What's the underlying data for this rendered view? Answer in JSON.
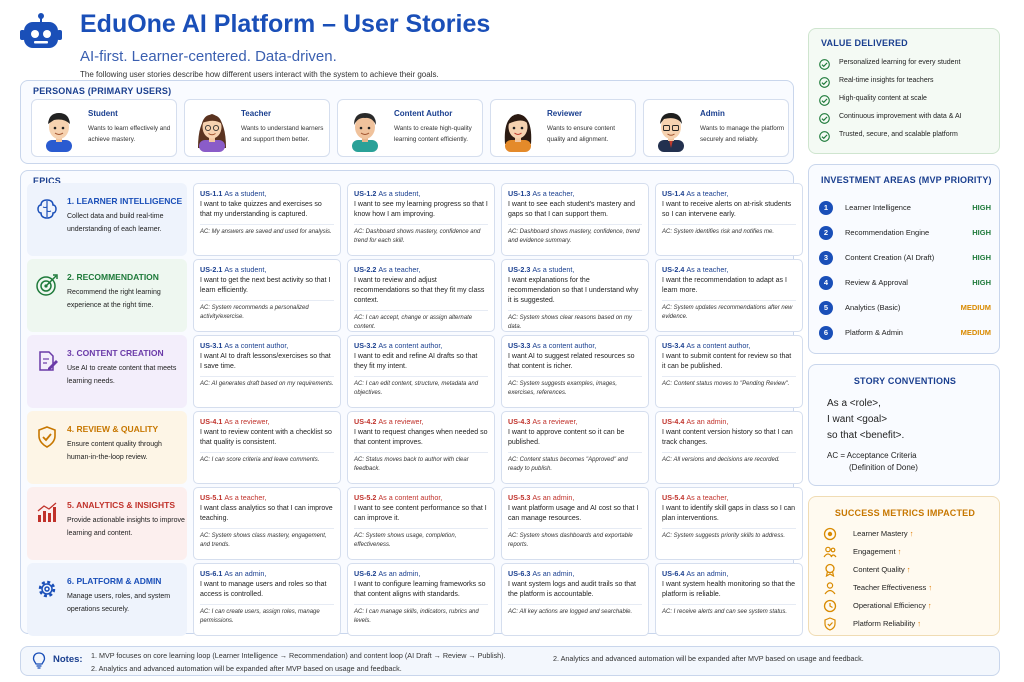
{
  "header": {
    "title": "EduOne AI Platform – User Stories",
    "subtitle": "AI-first. Learner-centered. Data-driven.",
    "intro": "The following user stories describe how different users interact with the system to achieve their goals."
  },
  "personas": {
    "title": "PERSONAS (PRIMARY USERS)",
    "items": [
      {
        "name": "Student",
        "desc": "Wants to learn effectively and achieve mastery.",
        "icon": "student-avatar-icon"
      },
      {
        "name": "Teacher",
        "desc": "Wants to understand learners and support them better.",
        "icon": "teacher-avatar-icon"
      },
      {
        "name": "Content Author",
        "desc": "Wants to create high-quality learning content efficiently.",
        "icon": "author-avatar-icon"
      },
      {
        "name": "Reviewer",
        "desc": "Wants to ensure content quality and alignment.",
        "icon": "reviewer-avatar-icon"
      },
      {
        "name": "Admin",
        "desc": "Wants to manage the platform securely and reliably.",
        "icon": "admin-avatar-icon"
      }
    ]
  },
  "epics": {
    "title": "EPICS",
    "rows": [
      {
        "title": "1. LEARNER INTELLIGENCE",
        "desc": "Collect data and build real-time understanding of each learner.",
        "color": "#1a4fb8",
        "bg": "#eef3fc",
        "icon": "brain-icon",
        "stories": [
          {
            "id": "US-1.1",
            "role": "As a student,",
            "want": "I want to take quizzes and exercises so that my understanding is captured.",
            "ac": "AC: My answers are saved and used for analysis."
          },
          {
            "id": "US-1.2",
            "role": "As a student,",
            "want": "I want to see my learning progress so that I know how I am improving.",
            "ac": "AC: Dashboard shows mastery, confidence and trend for each skill."
          },
          {
            "id": "US-1.3",
            "role": "As a teacher,",
            "want": "I want to see each student's mastery and gaps so that I can support them.",
            "ac": "AC: Dashboard shows mastery, confidence, trend and evidence summary."
          },
          {
            "id": "US-1.4",
            "role": "As a teacher,",
            "want": "I want to receive alerts on at-risk students so I can intervene early.",
            "ac": "AC: System identifies risk and notifies me."
          }
        ]
      },
      {
        "title": "2. RECOMMENDATION",
        "desc": "Recommend the right learning experience at the right time.",
        "color": "#1e7a3a",
        "bg": "#eef7f0",
        "icon": "target-icon",
        "stories": [
          {
            "id": "US-2.1",
            "role": "As a student,",
            "want": "I want to get the next best activity so that I learn efficiently.",
            "ac": "AC: System recommends a personalized activity/exercise."
          },
          {
            "id": "US-2.2",
            "role": "As a teacher,",
            "want": "I want to review and adjust recommendations so that they fit my class context.",
            "ac": "AC: I can accept, change or assign alternate content."
          },
          {
            "id": "US-2.3",
            "role": "As a student,",
            "want": "I want explanations for the recommendation so that I understand why it is suggested.",
            "ac": "AC: System shows clear reasons based on my data."
          },
          {
            "id": "US-2.4",
            "role": "As a teacher,",
            "want": "I want the recommendation to adapt as I learn more.",
            "ac": "AC: System updates recommendations after new evidence."
          }
        ]
      },
      {
        "title": "3. CONTENT CREATION",
        "desc": "Use AI to create content that meets learning needs.",
        "color": "#6a3aa8",
        "bg": "#f3eefb",
        "icon": "edit-document-icon",
        "stories": [
          {
            "id": "US-3.1",
            "role": "As a content author,",
            "want": "I want AI to draft lessons/exercises so that I save time.",
            "ac": "AC: AI generates draft based on my requirements."
          },
          {
            "id": "US-3.2",
            "role": "As a content author,",
            "want": "I want to edit and refine AI drafts so that they fit my intent.",
            "ac": "AC: I can edit content, structure, metadata and objectives."
          },
          {
            "id": "US-3.3",
            "role": "As a content author,",
            "want": "I want AI to suggest related resources so that content is richer.",
            "ac": "AC: System suggests examples, images, exercises, references."
          },
          {
            "id": "US-3.4",
            "role": "As a content author,",
            "want": "I want to submit content for review so that it can be published.",
            "ac": "AC: Content status moves to \"Pending Review\"."
          }
        ]
      },
      {
        "title": "4. REVIEW & QUALITY",
        "desc": "Ensure content quality through human-in-the-loop review.",
        "color": "#c77700",
        "bg": "#fdf5e6",
        "icon": "shield-check-icon",
        "stories": [
          {
            "id": "US-4.1",
            "role": "As a reviewer,",
            "want": "I want to review content with a checklist so that quality is consistent.",
            "ac": "AC: I can score criteria and leave comments."
          },
          {
            "id": "US-4.2",
            "role": "As a reviewer,",
            "want": "I want to request changes when needed so that content improves.",
            "ac": "AC: Status moves back to author with clear feedback."
          },
          {
            "id": "US-4.3",
            "role": "As a reviewer,",
            "want": "I want to approve content so it can be published.",
            "ac": "AC: Content status becomes \"Approved\" and ready to publish."
          },
          {
            "id": "US-4.4",
            "role": "As an admin,",
            "want": "I want content version history so that I can track changes.",
            "ac": "AC: All versions and decisions are recorded."
          }
        ]
      },
      {
        "title": "5. ANALYTICS & INSIGHTS",
        "desc": "Provide actionable insights to improve learning and content.",
        "color": "#c0322b",
        "bg": "#fcefee",
        "icon": "bar-chart-icon",
        "stories": [
          {
            "id": "US-5.1",
            "role": "As a teacher,",
            "want": "I want class analytics so that I can improve teaching.",
            "ac": "AC: System shows class mastery, engagement, and trends."
          },
          {
            "id": "US-5.2",
            "role": "As a content author,",
            "want": "I want to see content performance so that I can improve it.",
            "ac": "AC: System shows usage, completion, effectiveness."
          },
          {
            "id": "US-5.3",
            "role": "As an admin,",
            "want": "I want platform usage and AI cost so that I can manage resources.",
            "ac": "AC: System shows dashboards and exportable reports."
          },
          {
            "id": "US-5.4",
            "role": "As a teacher,",
            "want": "I want to identify skill gaps in class so I can plan interventions.",
            "ac": "AC: System suggests priority skills to address."
          }
        ]
      },
      {
        "title": "6. PLATFORM & ADMIN",
        "desc": "Manage users, roles, and system operations securely.",
        "color": "#1a4fb8",
        "bg": "#eef3fc",
        "icon": "gear-icon",
        "stories": [
          {
            "id": "US-6.1",
            "role": "As an admin,",
            "want": "I want to manage users and roles so that access is controlled.",
            "ac": "AC: I can create users, assign roles, manage permissions."
          },
          {
            "id": "US-6.2",
            "role": "As an admin,",
            "want": "I want to configure learning frameworks so that content aligns with standards.",
            "ac": "AC: I can manage skills, indicators, rubrics and levels."
          },
          {
            "id": "US-6.3",
            "role": "As an admin,",
            "want": "I want system logs and audit trails so that the platform is accountable.",
            "ac": "AC: All key actions are logged and searchable."
          },
          {
            "id": "US-6.4",
            "role": "As an admin,",
            "want": "I want system health monitoring so that the platform is reliable.",
            "ac": "AC: I receive alerts and can see system status."
          }
        ]
      }
    ]
  },
  "value": {
    "title": "VALUE DELIVERED",
    "items": [
      "Personalized learning for every student",
      "Real-time insights for teachers",
      "High-quality content at scale",
      "Continuous improvement with data & AI",
      "Trusted, secure, and scalable platform"
    ]
  },
  "investment": {
    "title": "INVESTMENT AREAS (MVP PRIORITY)",
    "items": [
      {
        "num": "1",
        "name": "Learner Intelligence",
        "level": "HIGH",
        "color": "#1e7a3a"
      },
      {
        "num": "2",
        "name": "Recommendation Engine",
        "level": "HIGH",
        "color": "#1e7a3a"
      },
      {
        "num": "3",
        "name": "Content Creation (AI Draft)",
        "level": "HIGH",
        "color": "#1e7a3a"
      },
      {
        "num": "4",
        "name": "Review & Approval",
        "level": "HIGH",
        "color": "#1e7a3a"
      },
      {
        "num": "5",
        "name": "Analytics (Basic)",
        "level": "MEDIUM",
        "color": "#d98a00"
      },
      {
        "num": "6",
        "name": "Platform & Admin",
        "level": "MEDIUM",
        "color": "#d98a00"
      }
    ]
  },
  "conventions": {
    "title": "STORY CONVENTIONS",
    "line1": "As a <role>,",
    "line2": "I want <goal>",
    "line3": "so that <benefit>.",
    "ac1": "AC = Acceptance Criteria",
    "ac2": "(Definition of Done)"
  },
  "metrics": {
    "title": "SUCCESS METRICS IMPACTED",
    "arrow": "↑",
    "items": [
      {
        "name": "Learner Mastery",
        "icon": "mastery-icon"
      },
      {
        "name": "Engagement",
        "icon": "people-icon"
      },
      {
        "name": "Content Quality",
        "icon": "badge-icon"
      },
      {
        "name": "Teacher Effectiveness",
        "icon": "teacher-icon"
      },
      {
        "name": "Operational Efficiency",
        "icon": "clock-icon"
      },
      {
        "name": "Platform Reliability",
        "icon": "shield-icon"
      }
    ]
  },
  "notes": {
    "label": "Notes:",
    "n1": "1. MVP focuses on core learning loop (Learner Intelligence → Recommendation) and content loop (AI Draft → Review → Publish).",
    "n2": "2. Analytics and advanced automation will be expanded after MVP based on usage and feedback.",
    "n3": "2. Analytics and advanced automation will be expanded after MVP based on usage and feedback."
  }
}
